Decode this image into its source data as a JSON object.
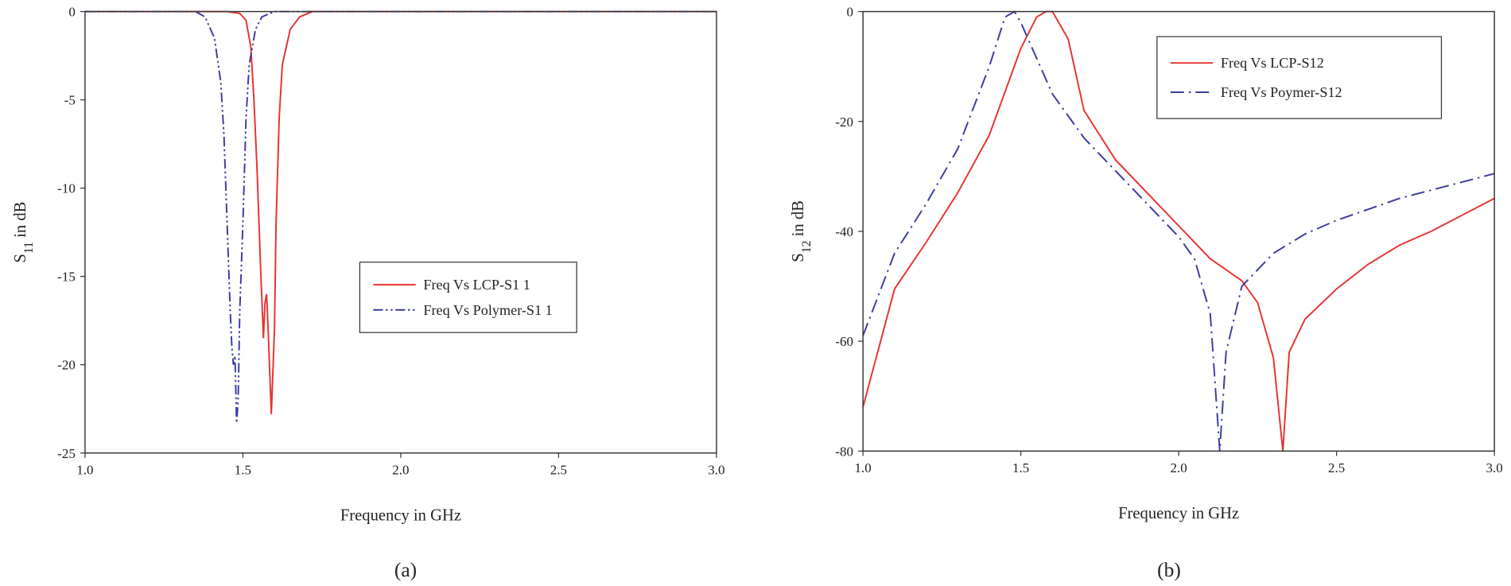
{
  "chart_data": [
    {
      "type": "line",
      "caption": "(a)",
      "xlabel": "Frequency in GHz",
      "ylabel": [
        "S",
        "11",
        " in dB"
      ],
      "xlim": [
        1.0,
        3.0
      ],
      "ylim": [
        -25,
        0
      ],
      "xticks": [
        {
          "value": 1.0,
          "label": "1.0"
        },
        {
          "value": 1.5,
          "label": "1.5"
        },
        {
          "value": 2.0,
          "label": "2.0"
        },
        {
          "value": 2.5,
          "label": "2.5"
        },
        {
          "value": 3.0,
          "label": "3.0"
        }
      ],
      "yticks": [
        0,
        -5,
        -10,
        -15,
        -20,
        -25
      ],
      "grid": false,
      "legend": "center",
      "series": [
        {
          "name": "Freq Vs LCP-S1 1",
          "color": "#e8312f",
          "linestyle": "solid",
          "x": [
            1.0,
            1.45,
            1.49,
            1.51,
            1.525,
            1.535,
            1.545,
            1.555,
            1.565,
            1.57,
            1.575,
            1.58,
            1.59,
            1.6,
            1.605,
            1.615,
            1.625,
            1.65,
            1.68,
            1.72,
            3.0
          ],
          "values": [
            0,
            0,
            -0.1,
            -0.5,
            -2,
            -5,
            -9,
            -14,
            -18.5,
            -16.5,
            -16,
            -18,
            -22.8,
            -18,
            -12,
            -6,
            -3,
            -1,
            -0.3,
            0,
            0
          ]
        },
        {
          "name": "Freq Vs Polymer-S1 1",
          "color": "#3a3aa0",
          "linestyle": "dashdotdot",
          "x": [
            1.0,
            1.35,
            1.38,
            1.41,
            1.43,
            1.44,
            1.45,
            1.46,
            1.465,
            1.47,
            1.475,
            1.48,
            1.485,
            1.49,
            1.5,
            1.51,
            1.52,
            1.54,
            1.56,
            1.6,
            3.0
          ],
          "values": [
            0,
            0,
            -0.3,
            -1.5,
            -4,
            -7,
            -12,
            -17,
            -19,
            -20,
            -19.5,
            -23.3,
            -22,
            -17,
            -12,
            -6,
            -3,
            -1,
            -0.3,
            0,
            0
          ]
        }
      ]
    },
    {
      "type": "line",
      "caption": "(b)",
      "xlabel": "Frequency in GHz",
      "ylabel": [
        "S",
        "12",
        " in dB"
      ],
      "xlim": [
        1.0,
        3.0
      ],
      "ylim": [
        -80,
        0
      ],
      "xticks": [
        {
          "value": 1.0,
          "label": "1.0"
        },
        {
          "value": 1.5,
          "label": "1.5"
        },
        {
          "value": 2.0,
          "label": "2.0"
        },
        {
          "value": 2.5,
          "label": "2.5"
        },
        {
          "value": 3.0,
          "label": "3.0"
        }
      ],
      "yticks": [
        0,
        -20,
        -40,
        -60,
        -80
      ],
      "grid": false,
      "legend": "upper right",
      "series": [
        {
          "name": "Freq Vs LCP-S12",
          "color": "#e8312f",
          "linestyle": "solid",
          "x": [
            1.0,
            1.1,
            1.2,
            1.3,
            1.4,
            1.5,
            1.55,
            1.58,
            1.6,
            1.65,
            1.7,
            1.8,
            1.9,
            2.0,
            2.1,
            2.2,
            2.25,
            2.3,
            2.33,
            2.35,
            2.4,
            2.5,
            2.6,
            2.7,
            2.8,
            2.9,
            3.0
          ],
          "values": [
            -72,
            -50.5,
            -42,
            -33,
            -22.5,
            -6.7,
            -1,
            0,
            0,
            -5,
            -18,
            -27,
            -33,
            -39,
            -45,
            -49,
            -53,
            -63,
            -80,
            -62,
            -56,
            -50.5,
            -46,
            -42.5,
            -40,
            -37,
            -34
          ]
        },
        {
          "name": "Freq Vs Poymer-S12",
          "color": "#3a3aa0",
          "linestyle": "dashdot",
          "x": [
            1.0,
            1.1,
            1.2,
            1.3,
            1.4,
            1.45,
            1.48,
            1.5,
            1.6,
            1.7,
            1.8,
            1.9,
            2.0,
            2.05,
            2.1,
            2.13,
            2.15,
            2.2,
            2.3,
            2.4,
            2.5,
            2.6,
            2.7,
            2.8,
            2.9,
            3.0
          ],
          "values": [
            -59,
            -44,
            -35,
            -25,
            -10,
            -1,
            0,
            -2,
            -15,
            -23,
            -29,
            -35,
            -41,
            -45,
            -55,
            -80,
            -62,
            -50,
            -44,
            -40.5,
            -38,
            -36,
            -34,
            -32.5,
            -31,
            -29.5
          ]
        }
      ]
    }
  ]
}
